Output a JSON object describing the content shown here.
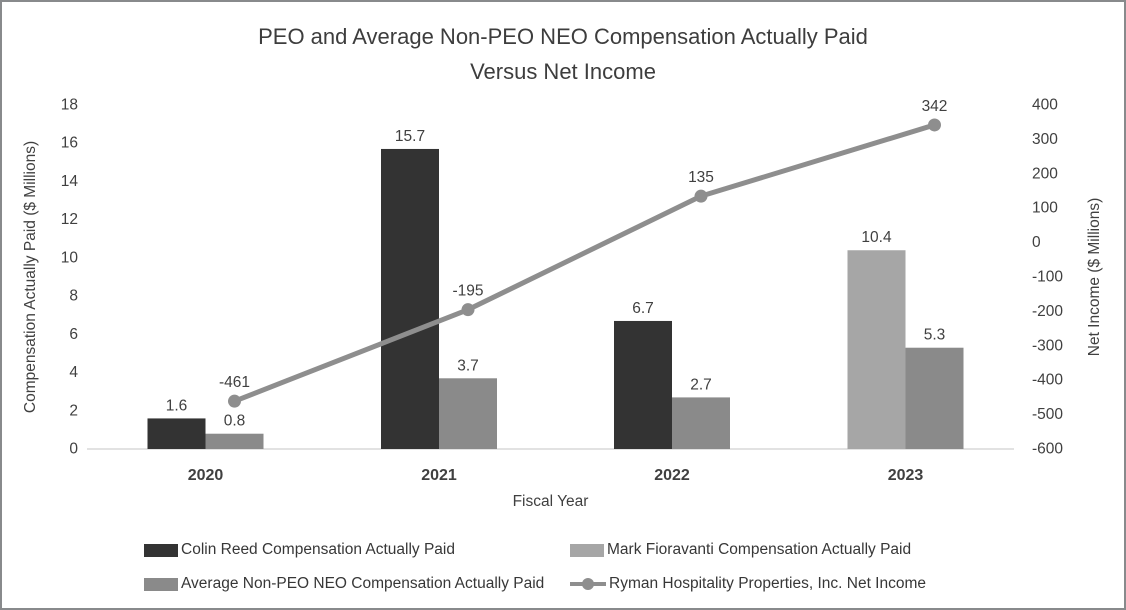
{
  "title": {
    "line1": "PEO and Average Non-PEO NEO Compensation Actually Paid",
    "line2": "Versus Net Income"
  },
  "chart_data": {
    "type": "bar+line",
    "categories": [
      "2020",
      "2021",
      "2022",
      "2023"
    ],
    "bar_series": [
      {
        "name": "Colin Reed Compensation Actually Paid",
        "color": "#333333",
        "values": [
          1.6,
          15.7,
          6.7,
          null
        ]
      },
      {
        "name": "Mark Fioravanti Compensation Actually Paid",
        "color": "#a6a6a6",
        "values": [
          null,
          null,
          null,
          10.4
        ]
      },
      {
        "name": "Average Non-PEO NEO Compensation Actually Paid",
        "color": "#8a8a8a",
        "values": [
          0.8,
          3.7,
          2.7,
          5.3
        ]
      }
    ],
    "line_series": {
      "name": "Ryman Hospitality Properties, Inc. Net Income",
      "color": "#8e8e8e",
      "values": [
        -461,
        -195,
        135,
        342
      ]
    },
    "left_axis": {
      "title": "Compensation Actually Paid ($ Millions)",
      "min": 0,
      "max": 18,
      "step": 2
    },
    "right_axis": {
      "title": "Net Income ($ Millions)",
      "min": -600,
      "max": 400,
      "step": 100
    },
    "x_axis": {
      "title": "Fiscal Year"
    },
    "grid": false,
    "legend_position": "bottom",
    "axis_line_color": "#d9d9d9",
    "text_color": "#404040"
  },
  "legend": {
    "items": [
      {
        "label": "Colin Reed Compensation Actually Paid",
        "swatch": "box",
        "color": "#333333"
      },
      {
        "label": "Mark Fioravanti Compensation Actually Paid",
        "swatch": "box",
        "color": "#a6a6a6"
      },
      {
        "label": "Average Non-PEO NEO Compensation Actually Paid",
        "swatch": "box",
        "color": "#8a8a8a"
      },
      {
        "label": "Ryman Hospitality Properties, Inc. Net Income",
        "swatch": "line-marker",
        "color": "#8e8e8e"
      }
    ]
  }
}
